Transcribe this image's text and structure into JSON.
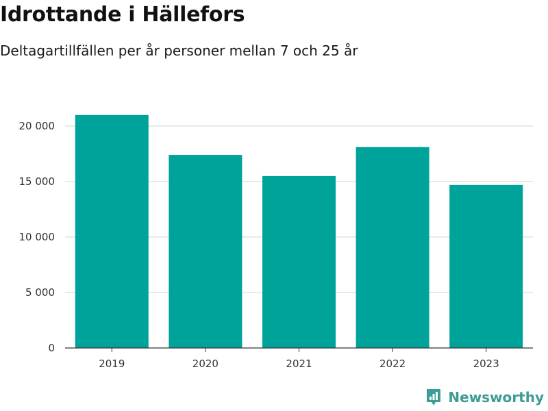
{
  "header": {
    "title": "Idrottande i Hällefors",
    "subtitle": "Deltagartillfällen per år personer mellan 7 och 25 år"
  },
  "brand": {
    "name": "Newsworthy",
    "icon": "newsworthy-logo-icon",
    "color": "#3d9c93"
  },
  "chart_data": {
    "type": "bar",
    "title": "Idrottande i Hällefors",
    "subtitle": "Deltagartillfällen per år personer mellan 7 och 25 år",
    "categories": [
      "2019",
      "2020",
      "2021",
      "2022",
      "2023"
    ],
    "values": [
      21000,
      17400,
      15500,
      18100,
      14700
    ],
    "ylim": [
      0,
      22000
    ],
    "yticks": [
      0,
      5000,
      10000,
      15000,
      20000
    ],
    "ytick_labels": [
      "0",
      "5 000",
      "10 000",
      "15 000",
      "20 000"
    ],
    "xlabel": "",
    "ylabel": "",
    "grid": true,
    "bar_color": "#00a39a"
  }
}
